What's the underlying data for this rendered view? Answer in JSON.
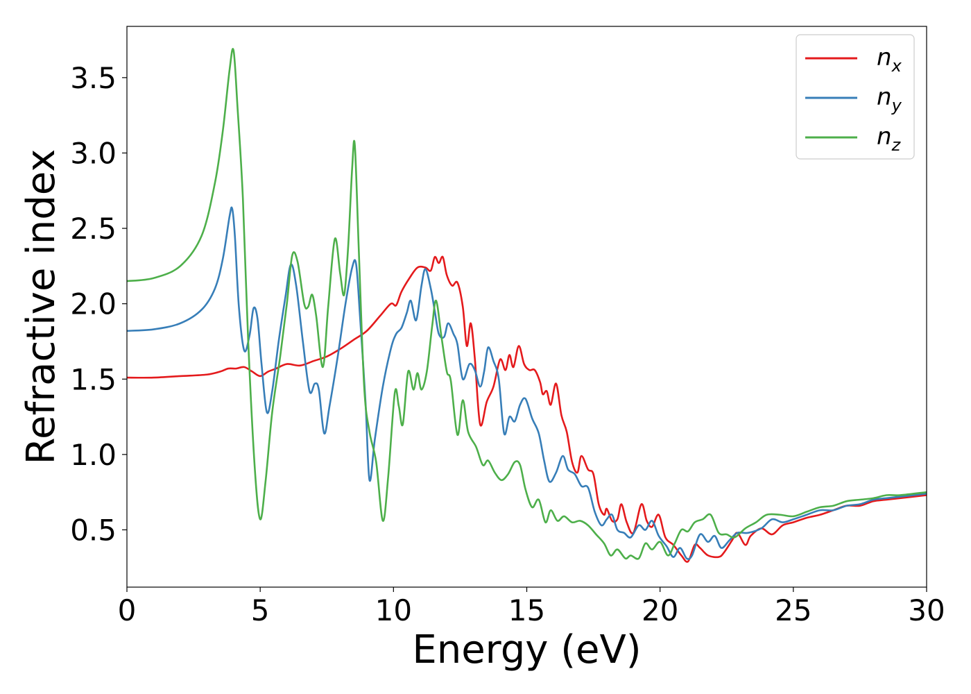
{
  "chart_data": {
    "type": "line",
    "title": "",
    "xlabel": "Energy (eV)",
    "ylabel": "Refractive index",
    "xlim": [
      0,
      30
    ],
    "ylim": [
      0.12,
      3.84
    ],
    "xticks": [
      0,
      5,
      10,
      15,
      20,
      25,
      30
    ],
    "xtick_labels": [
      "0",
      "5",
      "10",
      "15",
      "20",
      "25",
      "30"
    ],
    "yticks": [
      0.5,
      1.0,
      1.5,
      2.0,
      2.5,
      3.0,
      3.5
    ],
    "ytick_labels": [
      "0.5",
      "1.0",
      "1.5",
      "2.0",
      "2.5",
      "3.0",
      "3.5"
    ],
    "grid": false,
    "legend_position": "top-right",
    "series": [
      {
        "name": "n_x",
        "legend_base": "n",
        "legend_sub": "x",
        "color": "#e41a1c",
        "points": [
          [
            0,
            1.51
          ],
          [
            1,
            1.51
          ],
          [
            2,
            1.52
          ],
          [
            3,
            1.53
          ],
          [
            3.5,
            1.55
          ],
          [
            3.8,
            1.57
          ],
          [
            4.1,
            1.57
          ],
          [
            4.4,
            1.58
          ],
          [
            4.7,
            1.55
          ],
          [
            5.0,
            1.52
          ],
          [
            5.3,
            1.55
          ],
          [
            5.6,
            1.57
          ],
          [
            6.0,
            1.6
          ],
          [
            6.5,
            1.59
          ],
          [
            7.0,
            1.62
          ],
          [
            7.5,
            1.65
          ],
          [
            8.0,
            1.7
          ],
          [
            8.5,
            1.76
          ],
          [
            9.0,
            1.82
          ],
          [
            9.5,
            1.92
          ],
          [
            9.9,
            2.0
          ],
          [
            10.1,
            1.99
          ],
          [
            10.3,
            2.08
          ],
          [
            10.6,
            2.17
          ],
          [
            10.9,
            2.24
          ],
          [
            11.2,
            2.24
          ],
          [
            11.4,
            2.22
          ],
          [
            11.55,
            2.31
          ],
          [
            11.7,
            2.27
          ],
          [
            11.85,
            2.31
          ],
          [
            12.0,
            2.19
          ],
          [
            12.2,
            2.12
          ],
          [
            12.4,
            2.14
          ],
          [
            12.6,
            1.98
          ],
          [
            12.75,
            1.72
          ],
          [
            12.9,
            1.87
          ],
          [
            13.05,
            1.64
          ],
          [
            13.25,
            1.2
          ],
          [
            13.5,
            1.35
          ],
          [
            13.75,
            1.45
          ],
          [
            14.0,
            1.63
          ],
          [
            14.2,
            1.56
          ],
          [
            14.35,
            1.66
          ],
          [
            14.5,
            1.58
          ],
          [
            14.7,
            1.72
          ],
          [
            14.9,
            1.6
          ],
          [
            15.1,
            1.56
          ],
          [
            15.3,
            1.56
          ],
          [
            15.5,
            1.48
          ],
          [
            15.6,
            1.4
          ],
          [
            15.75,
            1.42
          ],
          [
            15.9,
            1.33
          ],
          [
            16.1,
            1.47
          ],
          [
            16.3,
            1.26
          ],
          [
            16.5,
            1.15
          ],
          [
            16.7,
            0.95
          ],
          [
            16.9,
            0.88
          ],
          [
            17.05,
            0.99
          ],
          [
            17.3,
            0.9
          ],
          [
            17.5,
            0.87
          ],
          [
            17.7,
            0.67
          ],
          [
            17.9,
            0.6
          ],
          [
            18.0,
            0.64
          ],
          [
            18.2,
            0.56
          ],
          [
            18.4,
            0.57
          ],
          [
            18.55,
            0.67
          ],
          [
            18.75,
            0.55
          ],
          [
            19.0,
            0.48
          ],
          [
            19.3,
            0.67
          ],
          [
            19.5,
            0.56
          ],
          [
            19.7,
            0.52
          ],
          [
            19.95,
            0.6
          ],
          [
            20.2,
            0.45
          ],
          [
            20.5,
            0.4
          ],
          [
            20.8,
            0.33
          ],
          [
            21.05,
            0.29
          ],
          [
            21.3,
            0.4
          ],
          [
            21.5,
            0.38
          ],
          [
            21.8,
            0.33
          ],
          [
            22.2,
            0.32
          ],
          [
            22.4,
            0.35
          ],
          [
            22.7,
            0.43
          ],
          [
            22.9,
            0.48
          ],
          [
            23.2,
            0.4
          ],
          [
            23.4,
            0.46
          ],
          [
            23.8,
            0.51
          ],
          [
            24.2,
            0.47
          ],
          [
            24.6,
            0.53
          ],
          [
            25.0,
            0.55
          ],
          [
            25.5,
            0.58
          ],
          [
            26.0,
            0.6
          ],
          [
            26.5,
            0.63
          ],
          [
            27.0,
            0.66
          ],
          [
            27.5,
            0.66
          ],
          [
            28.0,
            0.69
          ],
          [
            28.5,
            0.7
          ],
          [
            29.0,
            0.71
          ],
          [
            30.0,
            0.73
          ]
        ]
      },
      {
        "name": "n_y",
        "legend_base": "n",
        "legend_sub": "y",
        "color": "#377eb8",
        "points": [
          [
            0,
            1.82
          ],
          [
            1,
            1.83
          ],
          [
            2,
            1.87
          ],
          [
            2.8,
            1.96
          ],
          [
            3.3,
            2.1
          ],
          [
            3.6,
            2.3
          ],
          [
            3.85,
            2.58
          ],
          [
            3.95,
            2.63
          ],
          [
            4.05,
            2.45
          ],
          [
            4.2,
            1.98
          ],
          [
            4.4,
            1.69
          ],
          [
            4.6,
            1.79
          ],
          [
            4.75,
            1.97
          ],
          [
            4.9,
            1.9
          ],
          [
            5.05,
            1.6
          ],
          [
            5.25,
            1.28
          ],
          [
            5.45,
            1.42
          ],
          [
            5.7,
            1.76
          ],
          [
            5.95,
            2.05
          ],
          [
            6.15,
            2.26
          ],
          [
            6.35,
            2.12
          ],
          [
            6.6,
            1.75
          ],
          [
            6.85,
            1.42
          ],
          [
            7.05,
            1.47
          ],
          [
            7.2,
            1.43
          ],
          [
            7.4,
            1.14
          ],
          [
            7.6,
            1.32
          ],
          [
            7.9,
            1.64
          ],
          [
            8.2,
            2.0
          ],
          [
            8.45,
            2.24
          ],
          [
            8.6,
            2.26
          ],
          [
            8.75,
            1.9
          ],
          [
            8.95,
            1.35
          ],
          [
            9.1,
            0.83
          ],
          [
            9.3,
            1.1
          ],
          [
            9.6,
            1.45
          ],
          [
            9.9,
            1.7
          ],
          [
            10.1,
            1.8
          ],
          [
            10.3,
            1.84
          ],
          [
            10.5,
            1.94
          ],
          [
            10.65,
            2.02
          ],
          [
            10.85,
            1.89
          ],
          [
            11.05,
            2.12
          ],
          [
            11.2,
            2.23
          ],
          [
            11.4,
            2.1
          ],
          [
            11.55,
            1.95
          ],
          [
            11.7,
            1.8
          ],
          [
            11.9,
            1.78
          ],
          [
            12.05,
            1.87
          ],
          [
            12.25,
            1.8
          ],
          [
            12.4,
            1.73
          ],
          [
            12.6,
            1.5
          ],
          [
            12.85,
            1.6
          ],
          [
            13.05,
            1.56
          ],
          [
            13.25,
            1.45
          ],
          [
            13.4,
            1.55
          ],
          [
            13.55,
            1.71
          ],
          [
            13.75,
            1.62
          ],
          [
            13.95,
            1.5
          ],
          [
            14.15,
            1.14
          ],
          [
            14.35,
            1.25
          ],
          [
            14.55,
            1.22
          ],
          [
            14.75,
            1.33
          ],
          [
            14.95,
            1.37
          ],
          [
            15.2,
            1.24
          ],
          [
            15.45,
            1.14
          ],
          [
            15.65,
            0.96
          ],
          [
            15.85,
            0.82
          ],
          [
            16.1,
            0.88
          ],
          [
            16.35,
            0.99
          ],
          [
            16.55,
            0.9
          ],
          [
            16.8,
            0.87
          ],
          [
            17.05,
            0.79
          ],
          [
            17.3,
            0.78
          ],
          [
            17.55,
            0.62
          ],
          [
            17.8,
            0.53
          ],
          [
            18.0,
            0.57
          ],
          [
            18.2,
            0.6
          ],
          [
            18.4,
            0.5
          ],
          [
            18.65,
            0.48
          ],
          [
            18.9,
            0.45
          ],
          [
            19.2,
            0.53
          ],
          [
            19.45,
            0.5
          ],
          [
            19.7,
            0.56
          ],
          [
            19.95,
            0.46
          ],
          [
            20.25,
            0.39
          ],
          [
            20.5,
            0.32
          ],
          [
            20.75,
            0.38
          ],
          [
            21.0,
            0.31
          ],
          [
            21.2,
            0.33
          ],
          [
            21.5,
            0.47
          ],
          [
            21.8,
            0.42
          ],
          [
            22.05,
            0.46
          ],
          [
            22.3,
            0.38
          ],
          [
            22.6,
            0.43
          ],
          [
            22.9,
            0.48
          ],
          [
            23.3,
            0.48
          ],
          [
            23.8,
            0.51
          ],
          [
            24.2,
            0.57
          ],
          [
            24.6,
            0.55
          ],
          [
            25.0,
            0.57
          ],
          [
            25.5,
            0.6
          ],
          [
            26.0,
            0.63
          ],
          [
            26.5,
            0.63
          ],
          [
            27.0,
            0.66
          ],
          [
            27.5,
            0.67
          ],
          [
            28.0,
            0.7
          ],
          [
            28.5,
            0.71
          ],
          [
            29.0,
            0.72
          ],
          [
            30.0,
            0.74
          ]
        ]
      },
      {
        "name": "n_z",
        "legend_base": "n",
        "legend_sub": "z",
        "color": "#4daf4a",
        "points": [
          [
            0,
            2.15
          ],
          [
            1,
            2.17
          ],
          [
            2,
            2.25
          ],
          [
            2.8,
            2.45
          ],
          [
            3.3,
            2.8
          ],
          [
            3.6,
            3.15
          ],
          [
            3.85,
            3.55
          ],
          [
            4.0,
            3.68
          ],
          [
            4.15,
            3.3
          ],
          [
            4.35,
            2.7
          ],
          [
            4.55,
            1.75
          ],
          [
            4.8,
            0.9
          ],
          [
            5.0,
            0.57
          ],
          [
            5.2,
            0.82
          ],
          [
            5.45,
            1.28
          ],
          [
            5.75,
            1.65
          ],
          [
            6.0,
            2.0
          ],
          [
            6.2,
            2.32
          ],
          [
            6.4,
            2.28
          ],
          [
            6.65,
            2.0
          ],
          [
            6.8,
            1.98
          ],
          [
            6.95,
            2.06
          ],
          [
            7.1,
            1.92
          ],
          [
            7.35,
            1.58
          ],
          [
            7.55,
            1.98
          ],
          [
            7.8,
            2.43
          ],
          [
            8.0,
            2.2
          ],
          [
            8.15,
            2.06
          ],
          [
            8.3,
            2.38
          ],
          [
            8.45,
            2.9
          ],
          [
            8.55,
            3.05
          ],
          [
            8.7,
            2.35
          ],
          [
            8.9,
            1.45
          ],
          [
            9.1,
            1.15
          ],
          [
            9.35,
            0.95
          ],
          [
            9.6,
            0.56
          ],
          [
            9.8,
            0.85
          ],
          [
            10.05,
            1.41
          ],
          [
            10.2,
            1.32
          ],
          [
            10.35,
            1.2
          ],
          [
            10.55,
            1.55
          ],
          [
            10.75,
            1.43
          ],
          [
            10.9,
            1.54
          ],
          [
            11.05,
            1.43
          ],
          [
            11.25,
            1.55
          ],
          [
            11.45,
            1.85
          ],
          [
            11.6,
            2.02
          ],
          [
            11.8,
            1.78
          ],
          [
            12.0,
            1.55
          ],
          [
            12.15,
            1.49
          ],
          [
            12.4,
            1.13
          ],
          [
            12.6,
            1.36
          ],
          [
            12.8,
            1.15
          ],
          [
            13.1,
            1.05
          ],
          [
            13.35,
            0.93
          ],
          [
            13.55,
            0.96
          ],
          [
            13.8,
            0.88
          ],
          [
            14.05,
            0.83
          ],
          [
            14.3,
            0.87
          ],
          [
            14.55,
            0.95
          ],
          [
            14.75,
            0.93
          ],
          [
            14.95,
            0.77
          ],
          [
            15.2,
            0.65
          ],
          [
            15.45,
            0.7
          ],
          [
            15.7,
            0.55
          ],
          [
            15.9,
            0.63
          ],
          [
            16.15,
            0.56
          ],
          [
            16.4,
            0.59
          ],
          [
            16.7,
            0.55
          ],
          [
            17.0,
            0.56
          ],
          [
            17.3,
            0.53
          ],
          [
            17.6,
            0.47
          ],
          [
            17.9,
            0.41
          ],
          [
            18.15,
            0.33
          ],
          [
            18.4,
            0.37
          ],
          [
            18.7,
            0.31
          ],
          [
            18.9,
            0.33
          ],
          [
            19.2,
            0.31
          ],
          [
            19.45,
            0.41
          ],
          [
            19.7,
            0.37
          ],
          [
            20.0,
            0.42
          ],
          [
            20.3,
            0.33
          ],
          [
            20.55,
            0.41
          ],
          [
            20.8,
            0.5
          ],
          [
            21.05,
            0.49
          ],
          [
            21.3,
            0.55
          ],
          [
            21.6,
            0.57
          ],
          [
            21.9,
            0.6
          ],
          [
            22.2,
            0.48
          ],
          [
            22.5,
            0.47
          ],
          [
            22.8,
            0.45
          ],
          [
            23.2,
            0.51
          ],
          [
            23.6,
            0.55
          ],
          [
            24.0,
            0.6
          ],
          [
            24.5,
            0.6
          ],
          [
            25.0,
            0.59
          ],
          [
            25.5,
            0.62
          ],
          [
            26.0,
            0.65
          ],
          [
            26.5,
            0.66
          ],
          [
            27.0,
            0.69
          ],
          [
            27.5,
            0.7
          ],
          [
            28.0,
            0.71
          ],
          [
            28.5,
            0.73
          ],
          [
            29.0,
            0.73
          ],
          [
            30.0,
            0.75
          ]
        ]
      }
    ]
  }
}
